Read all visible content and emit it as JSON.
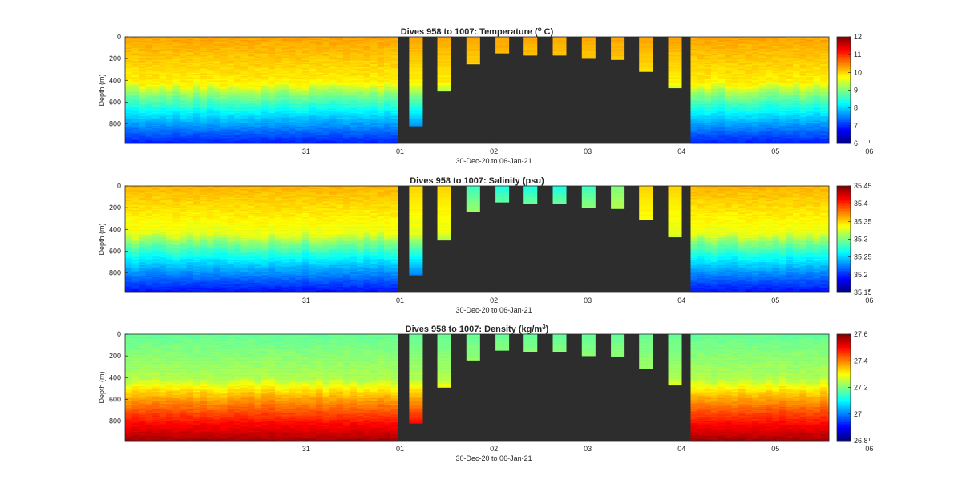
{
  "colors": {
    "figure_background": "#ffffff",
    "axes_background": "#2d2d2d",
    "colormap": "jet"
  },
  "chart_data": [
    {
      "type": "heatmap",
      "title": "Dives 958 to 1007: Temperature (",
      "title_super": "o",
      "title_end": " C)",
      "xlabel": "30-Dec-20 to 06-Jan-21",
      "ylabel": "Depth (m)",
      "x_ticks": [
        "31",
        "01",
        "02",
        "03",
        "04",
        "05",
        "06"
      ],
      "y_ticks": [
        "0",
        "200",
        "400",
        "600",
        "800"
      ],
      "y_tick_values": [
        0,
        200,
        400,
        600,
        800
      ],
      "ylim": [
        0,
        980
      ],
      "xlim_days": [
        -0.93,
        6.57
      ],
      "colorbar": {
        "ticks": [
          "12",
          "11",
          "10",
          "9",
          "8",
          "7",
          "6"
        ],
        "tick_values": [
          12,
          11,
          10,
          9,
          8,
          7,
          6
        ],
        "range": [
          6,
          12
        ]
      },
      "profile": {
        "surface": 10.3,
        "thermocline_depth": 430,
        "thermocline_value": 9.8,
        "bottom": 6.9
      },
      "gaps": [
        [
          1.95,
          5.12
        ]
      ],
      "dives": [
        {
          "day": 2.17,
          "max_depth": 820
        },
        {
          "day": 2.47,
          "max_depth": 500
        },
        {
          "day": 2.78,
          "max_depth": 250
        },
        {
          "day": 3.09,
          "max_depth": 150
        },
        {
          "day": 3.39,
          "max_depth": 170
        },
        {
          "day": 3.7,
          "max_depth": 170
        },
        {
          "day": 4.01,
          "max_depth": 200
        },
        {
          "day": 4.32,
          "max_depth": 210
        },
        {
          "day": 4.62,
          "max_depth": 320
        },
        {
          "day": 4.93,
          "max_depth": 470
        }
      ]
    },
    {
      "type": "heatmap",
      "title": "Dives 958 to 1007: Salinity (psu)",
      "xlabel": "30-Dec-20 to 06-Jan-21",
      "ylabel": "Depth (m)",
      "x_ticks": [
        "31",
        "01",
        "02",
        "03",
        "04",
        "05",
        "06"
      ],
      "y_ticks": [
        "0",
        "200",
        "400",
        "600",
        "800"
      ],
      "y_tick_values": [
        0,
        200,
        400,
        600,
        800
      ],
      "ylim": [
        0,
        980
      ],
      "xlim_days": [
        -0.93,
        6.57
      ],
      "colorbar": {
        "ticks": [
          "35.45",
          "35.4",
          "35.35",
          "35.3",
          "35.25",
          "35.2",
          "35.15"
        ],
        "tick_values": [
          35.45,
          35.4,
          35.35,
          35.3,
          35.25,
          35.2,
          35.15
        ],
        "range": [
          35.15,
          35.45
        ]
      },
      "profile": {
        "surface": 35.36,
        "thermocline_depth": 450,
        "thermocline_value": 35.33,
        "bottom": 35.19
      },
      "gaps": [
        [
          1.95,
          5.12
        ]
      ],
      "dives": [
        {
          "day": 2.17,
          "max_depth": 820,
          "surface": 35.35
        },
        {
          "day": 2.47,
          "max_depth": 500,
          "surface": 35.35
        },
        {
          "day": 2.78,
          "max_depth": 240,
          "surface": 35.28
        },
        {
          "day": 3.09,
          "max_depth": 150,
          "surface": 35.27
        },
        {
          "day": 3.39,
          "max_depth": 160,
          "surface": 35.27
        },
        {
          "day": 3.7,
          "max_depth": 160,
          "surface": 35.27
        },
        {
          "day": 4.01,
          "max_depth": 200,
          "surface": 35.28
        },
        {
          "day": 4.32,
          "max_depth": 210,
          "surface": 35.3
        },
        {
          "day": 4.62,
          "max_depth": 310,
          "surface": 35.35
        },
        {
          "day": 4.93,
          "max_depth": 470,
          "surface": 35.35
        }
      ]
    },
    {
      "type": "heatmap",
      "title": "Dives 958 to 1007: Density (kg/m",
      "title_super": "3",
      "title_end": ")",
      "xlabel": "30-Dec-20 to 06-Jan-21",
      "ylabel": "Depth (m)",
      "x_ticks": [
        "31",
        "01",
        "02",
        "03",
        "04",
        "05",
        "06"
      ],
      "y_ticks": [
        "0",
        "200",
        "400",
        "600",
        "800"
      ],
      "y_tick_values": [
        0,
        200,
        400,
        600,
        800
      ],
      "ylim": [
        0,
        980
      ],
      "xlim_days": [
        -0.93,
        6.57
      ],
      "colorbar": {
        "ticks": [
          "27.6",
          "27.4",
          "27.2",
          "27",
          "26.8"
        ],
        "tick_values": [
          27.6,
          27.4,
          27.2,
          27.0,
          26.8
        ],
        "range": [
          26.8,
          27.6
        ]
      },
      "profile": {
        "surface": 27.18,
        "thermocline_depth": 420,
        "thermocline_value": 27.24,
        "bottom": 27.57
      },
      "gaps": [
        [
          1.95,
          5.12
        ]
      ],
      "dives": [
        {
          "day": 2.17,
          "max_depth": 820
        },
        {
          "day": 2.47,
          "max_depth": 490
        },
        {
          "day": 2.78,
          "max_depth": 240
        },
        {
          "day": 3.09,
          "max_depth": 150
        },
        {
          "day": 3.39,
          "max_depth": 160
        },
        {
          "day": 3.7,
          "max_depth": 160
        },
        {
          "day": 4.01,
          "max_depth": 200
        },
        {
          "day": 4.32,
          "max_depth": 210
        },
        {
          "day": 4.62,
          "max_depth": 320
        },
        {
          "day": 4.93,
          "max_depth": 470
        }
      ]
    }
  ]
}
